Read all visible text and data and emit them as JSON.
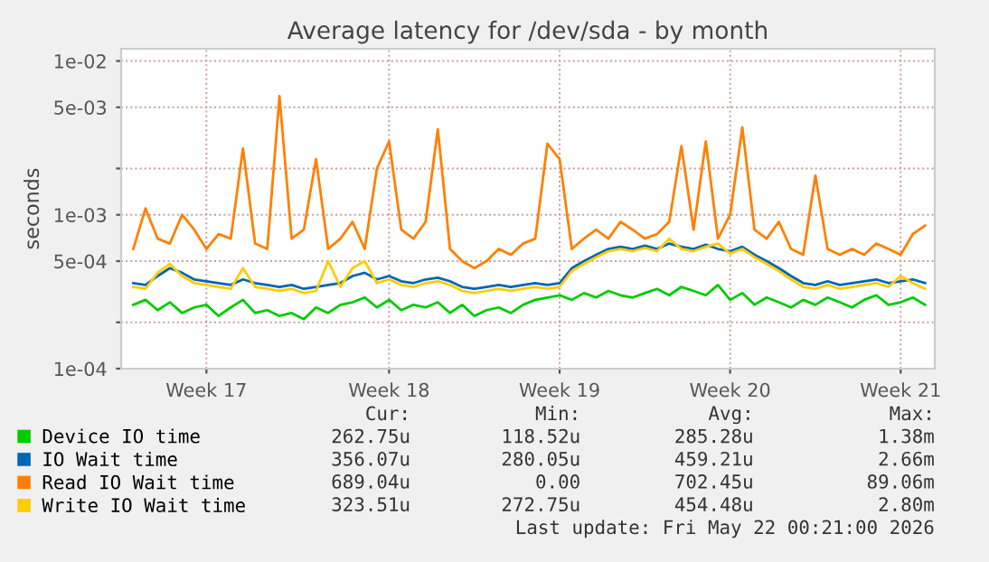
{
  "chart_data": {
    "type": "line",
    "title": "Average latency for /dev/sda - by month",
    "ylabel": "seconds",
    "log": "y",
    "grid": true,
    "legend": "bottom",
    "marker": "none",
    "line_style": "solid",
    "categories": [
      null,
      null,
      null,
      null,
      null,
      null,
      "Week 17",
      null,
      null,
      null,
      null,
      null,
      null,
      null,
      null,
      null,
      null,
      null,
      null,
      null,
      null,
      "Week 18",
      null,
      null,
      null,
      null,
      null,
      null,
      null,
      null,
      null,
      null,
      null,
      null,
      null,
      "Week 19",
      null,
      null,
      null,
      null,
      null,
      null,
      null,
      null,
      null,
      null,
      null,
      null,
      null,
      "Week 20",
      null,
      null,
      null,
      null,
      null,
      null,
      null,
      null,
      null,
      null,
      null,
      null,
      null,
      "Week 21",
      null,
      null
    ],
    "ylim": [
      0.0001,
      0.012
    ],
    "yticks": [
      {
        "value": 0.0001,
        "label": "1e-04"
      },
      {
        "value": 0.0002,
        "label": null
      },
      {
        "value": 0.0005,
        "label": "5e-04"
      },
      {
        "value": 0.001,
        "label": "1e-03"
      },
      {
        "value": 0.002,
        "label": null
      },
      {
        "value": 0.005,
        "label": "5e-03"
      },
      {
        "value": 0.01,
        "label": "1e-02"
      }
    ],
    "series": [
      {
        "name": "Device IO time",
        "color": "#00cc00",
        "values": [
          0.00026,
          0.00028,
          0.00024,
          0.00027,
          0.00023,
          0.00025,
          0.00026,
          0.00022,
          0.00025,
          0.00028,
          0.00023,
          0.00024,
          0.00022,
          0.00023,
          0.00021,
          0.00025,
          0.00023,
          0.00026,
          0.00027,
          0.00029,
          0.00025,
          0.00028,
          0.00024,
          0.00026,
          0.00025,
          0.00027,
          0.00023,
          0.00026,
          0.00022,
          0.00024,
          0.00025,
          0.00023,
          0.00026,
          0.00028,
          0.00029,
          0.0003,
          0.00028,
          0.00031,
          0.00029,
          0.00032,
          0.0003,
          0.00029,
          0.00031,
          0.00033,
          0.0003,
          0.00034,
          0.00032,
          0.0003,
          0.00035,
          0.00028,
          0.00031,
          0.00026,
          0.00029,
          0.00027,
          0.00025,
          0.00028,
          0.00026,
          0.00029,
          0.00027,
          0.00025,
          0.00028,
          0.0003,
          0.00026,
          0.00027,
          0.00029,
          0.00026
        ]
      },
      {
        "name": "IO Wait time",
        "color": "#0066b3",
        "values": [
          0.00036,
          0.00035,
          0.0004,
          0.00045,
          0.00042,
          0.00038,
          0.00037,
          0.00036,
          0.00035,
          0.00038,
          0.00036,
          0.00035,
          0.00034,
          0.00035,
          0.00033,
          0.00034,
          0.00035,
          0.00036,
          0.0004,
          0.00042,
          0.00038,
          0.0004,
          0.00037,
          0.00036,
          0.00038,
          0.00039,
          0.00037,
          0.00034,
          0.00033,
          0.00034,
          0.00035,
          0.00034,
          0.00035,
          0.00036,
          0.00035,
          0.00036,
          0.00045,
          0.0005,
          0.00055,
          0.0006,
          0.00062,
          0.0006,
          0.00063,
          0.0006,
          0.00065,
          0.00062,
          0.0006,
          0.00064,
          0.0006,
          0.00058,
          0.00062,
          0.00055,
          0.0005,
          0.00045,
          0.0004,
          0.00036,
          0.00035,
          0.00037,
          0.00035,
          0.00036,
          0.00037,
          0.00038,
          0.00036,
          0.00037,
          0.00038,
          0.00036
        ]
      },
      {
        "name": "Read IO Wait time",
        "color": "#ff8000",
        "values": [
          0.0006,
          0.0011,
          0.0007,
          0.00065,
          0.001,
          0.0008,
          0.0006,
          0.00075,
          0.0007,
          0.0027,
          0.00065,
          0.0006,
          0.0059,
          0.0007,
          0.0008,
          0.0023,
          0.0006,
          0.0007,
          0.0009,
          0.0006,
          0.002,
          0.003,
          0.0008,
          0.0007,
          0.0009,
          0.0036,
          0.0006,
          0.0005,
          0.00045,
          0.0005,
          0.0006,
          0.00055,
          0.00065,
          0.0007,
          0.0029,
          0.0023,
          0.0006,
          0.0007,
          0.0008,
          0.0007,
          0.0009,
          0.0008,
          0.0007,
          0.00075,
          0.0009,
          0.0028,
          0.0008,
          0.003,
          0.0007,
          0.001,
          0.0037,
          0.0008,
          0.0007,
          0.0009,
          0.0006,
          0.00055,
          0.0018,
          0.0006,
          0.00055,
          0.0006,
          0.00055,
          0.00065,
          0.0006,
          0.00055,
          0.00075,
          0.00085
        ]
      },
      {
        "name": "Write IO Wait time",
        "color": "#ffcc00",
        "values": [
          0.00034,
          0.00033,
          0.00042,
          0.00048,
          0.0004,
          0.00036,
          0.00035,
          0.00034,
          0.00033,
          0.00045,
          0.00034,
          0.00033,
          0.00032,
          0.00033,
          0.00031,
          0.00032,
          0.0005,
          0.00034,
          0.00045,
          0.0005,
          0.00036,
          0.00038,
          0.00035,
          0.00034,
          0.00036,
          0.00037,
          0.00035,
          0.00032,
          0.00031,
          0.00032,
          0.00033,
          0.00032,
          0.00033,
          0.00034,
          0.00033,
          0.00034,
          0.00043,
          0.00048,
          0.00053,
          0.00058,
          0.0006,
          0.00058,
          0.00061,
          0.00058,
          0.0007,
          0.0006,
          0.00058,
          0.00062,
          0.00065,
          0.00056,
          0.0006,
          0.00053,
          0.00048,
          0.00043,
          0.00038,
          0.00034,
          0.00033,
          0.00035,
          0.00033,
          0.00034,
          0.00035,
          0.00036,
          0.00034,
          0.0004,
          0.00036,
          0.00033
        ]
      }
    ],
    "annotations": [
      "Cur:",
      "Min:",
      "Avg:",
      "Max:",
      "262.75u",
      "118.52u",
      "285.28u",
      "1.38m",
      "356.07u",
      "280.05u",
      "459.21u",
      "2.66m",
      "689.04u",
      "0.00",
      "702.45u",
      "89.06m",
      "323.51u",
      "272.75u",
      "454.48u",
      "2.80m",
      "Last update: Fri May 22 00:21:00 2026"
    ]
  }
}
